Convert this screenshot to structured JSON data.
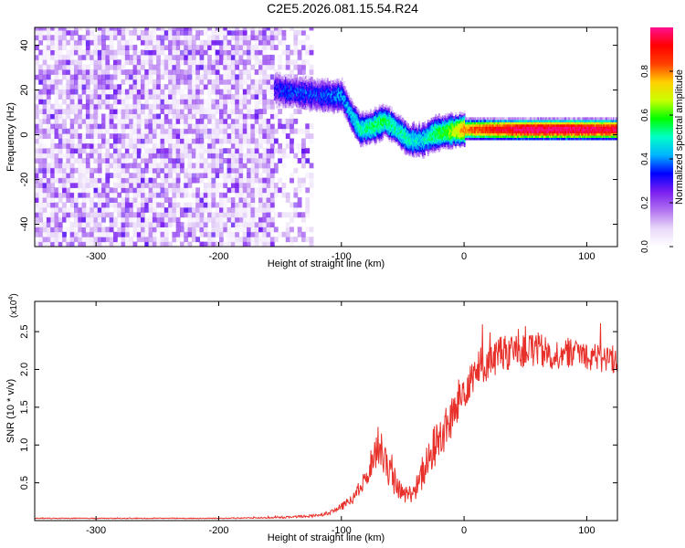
{
  "title": "C2E5.2026.081.15.54.R24",
  "colors": {
    "snr_line": "#e8302a",
    "axis": "#000000",
    "background": "#ffffff"
  },
  "chart_data": [
    {
      "type": "heatmap",
      "title": "C2E5.2026.081.15.54.R24",
      "xlabel": "Height of straight line (km)",
      "ylabel": "Frequency (Hz)",
      "xlim": [
        -350,
        125
      ],
      "ylim": [
        -50,
        48
      ],
      "x_ticks": [
        "-300",
        "-200",
        "-100",
        "0",
        "100"
      ],
      "x_tick_values": [
        -300,
        -200,
        -100,
        0,
        100
      ],
      "y_ticks": [
        "-40",
        "-20",
        "0",
        "20",
        "40"
      ],
      "y_tick_values": [
        -40,
        -20,
        0,
        20,
        40
      ],
      "colorbar": {
        "label": "Normalized spectral amplitude",
        "range": [
          0,
          1
        ],
        "ticks": [
          "0.0",
          "0.2",
          "0.4",
          "0.6",
          "0.8"
        ],
        "tick_values": [
          0,
          0.2,
          0.4,
          0.6,
          0.8
        ],
        "colormap": [
          "#ffffff",
          "#e8d8f8",
          "#b070f0",
          "#7a1ef0",
          "#0000ff",
          "#00b4ff",
          "#00ffc8",
          "#00ff00",
          "#c8ff00",
          "#ffd000",
          "#ff4000",
          "#ff0000",
          "#ff1090"
        ]
      },
      "features": [
        {
          "name": "noise",
          "x_range": [
            -350,
            -155
          ],
          "y_range": [
            -50,
            48
          ],
          "amplitude": 0.15
        },
        {
          "name": "sparse noise",
          "x_range": [
            -155,
            -125
          ],
          "y_range": [
            -50,
            48
          ],
          "amplitude": 0.08
        },
        {
          "name": "ridge",
          "x": [
            -155,
            -145,
            -130,
            -115,
            -100,
            -92,
            -85,
            -75,
            -65,
            -55,
            -45,
            -35,
            -25,
            -15,
            0,
            20,
            50,
            80,
            125
          ],
          "y": [
            20,
            19,
            18,
            17,
            17,
            8,
            2,
            3,
            6,
            2,
            -3,
            -3,
            0,
            1,
            2,
            2,
            2,
            2,
            2
          ],
          "amplitude": [
            0.3,
            0.35,
            0.35,
            0.35,
            0.4,
            0.45,
            0.5,
            0.55,
            0.55,
            0.5,
            0.5,
            0.45,
            0.55,
            0.6,
            0.8,
            0.9,
            1.0,
            1.0,
            0.95
          ]
        }
      ]
    },
    {
      "type": "line",
      "xlabel": "Height of straight line (km)",
      "ylabel": "SNR (10 * v/v)",
      "y_exponent": "(x10",
      "y_exponent_sup": "4",
      "y_exponent_close": ")",
      "xlim": [
        -350,
        125
      ],
      "ylim": [
        0,
        29000
      ],
      "x_ticks": [
        "-300",
        "-200",
        "-100",
        "0",
        "100"
      ],
      "x_tick_values": [
        -300,
        -200,
        -100,
        0,
        100
      ],
      "y_ticks": [
        "0.5",
        "1.0",
        "1.5",
        "2.0",
        "2.5"
      ],
      "y_tick_values": [
        5000,
        10000,
        15000,
        20000,
        25000
      ],
      "x": [
        -350,
        -300,
        -250,
        -200,
        -150,
        -125,
        -110,
        -100,
        -90,
        -80,
        -75,
        -70,
        -65,
        -60,
        -55,
        -50,
        -45,
        -40,
        -35,
        -30,
        -25,
        -20,
        -15,
        -10,
        -5,
        0,
        5,
        10,
        15,
        20,
        25,
        30,
        40,
        50,
        60,
        70,
        80,
        90,
        100,
        110,
        125
      ],
      "y": [
        300,
        300,
        300,
        300,
        400,
        600,
        1000,
        1800,
        3000,
        5500,
        8000,
        10000,
        8500,
        6000,
        4500,
        3500,
        3500,
        4000,
        5500,
        7500,
        9500,
        11000,
        12000,
        13500,
        15500,
        17500,
        19000,
        20000,
        20500,
        21000,
        21500,
        22000,
        22500,
        23000,
        22500,
        22000,
        22000,
        22500,
        22000,
        21500,
        21500
      ],
      "noise_amplitude": [
        50,
        50,
        50,
        50,
        100,
        200,
        300,
        500,
        800,
        1500,
        2000,
        2500,
        2500,
        2000,
        1500,
        1200,
        1200,
        1500,
        2000,
        2500,
        3000,
        3000,
        3000,
        3000,
        3000,
        3000,
        2800,
        2500,
        2500,
        2500,
        2500,
        2500,
        2500,
        2800,
        2500,
        2200,
        2000,
        2000,
        2000,
        2000,
        2000
      ]
    }
  ]
}
